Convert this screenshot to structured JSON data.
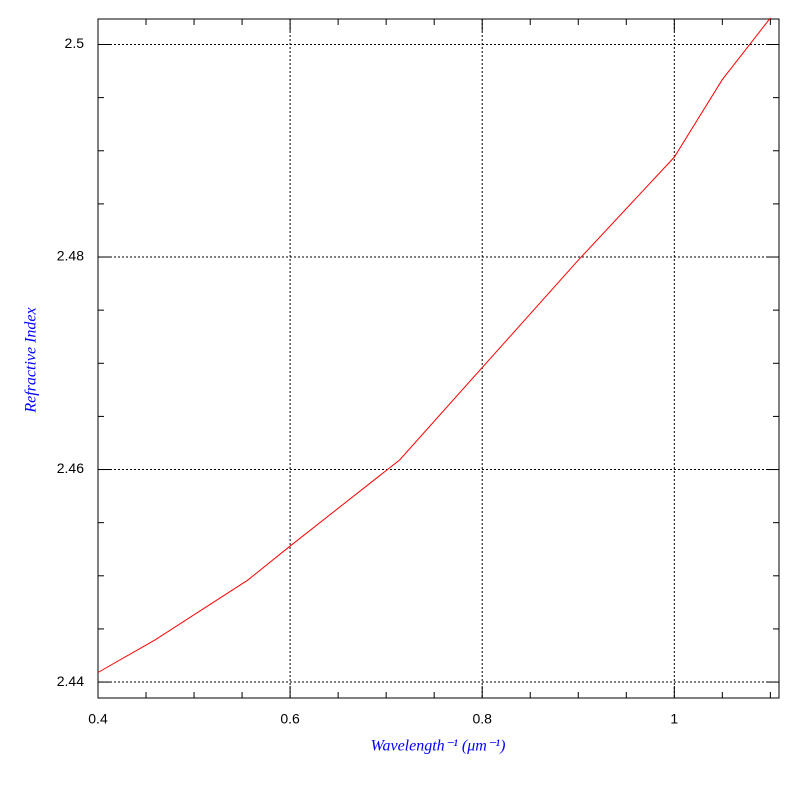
{
  "chart_data": {
    "type": "line",
    "x_label": "Wavelength⁻¹ (μm⁻¹)",
    "y_label": "Refractive Index",
    "x": [
      0.4,
      0.46,
      0.556,
      0.6,
      0.714,
      0.8,
      0.9,
      1.0,
      1.05,
      1.1
    ],
    "series": [
      {
        "color": "#ff0000",
        "values": [
          2.4409,
          2.444,
          2.4496,
          2.4528,
          2.4609,
          2.4696,
          2.4797,
          2.4894,
          2.4967,
          2.5025
        ]
      }
    ],
    "xlim": [
      0.4,
      1.109
    ],
    "ylim": [
      2.4385,
      2.5024
    ],
    "xticks": [
      0.4,
      0.6,
      0.8,
      1
    ],
    "yticks": [
      2.44,
      2.46,
      2.48,
      2.5
    ],
    "xminorticks": [
      0.45,
      0.5,
      0.55,
      0.65,
      0.7,
      0.75,
      0.85,
      0.9,
      0.95,
      1.05,
      1.1
    ],
    "yminorticks": [
      2.445,
      2.45,
      2.455,
      2.465,
      2.47,
      2.475,
      2.485,
      2.49,
      2.495
    ],
    "grid": true
  }
}
